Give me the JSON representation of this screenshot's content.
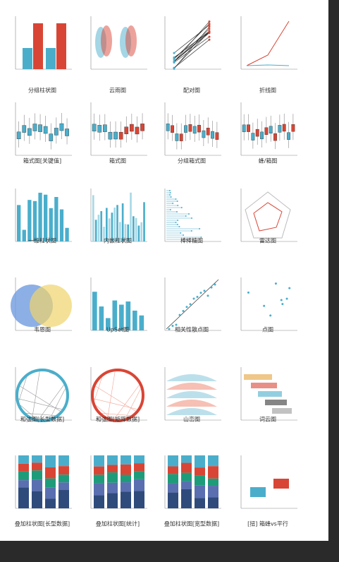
{
  "gallery": {
    "items": [
      "分组柱状图",
      "云雨图",
      "配对图",
      "折线图",
      "箱式图[关键值]",
      "箱式图",
      "分组箱式图",
      "蜂/箱图",
      "一维柱状图",
      "内嵌柱状图",
      "棒棒糖图",
      "雷达图",
      "韦恩图",
      "UpSet图",
      "相关性散点图",
      "点图",
      "和弦图[长型数据]",
      "和弦图[矩阵数据]",
      "山峦图",
      "词云图",
      "叠加柱状图[长型数据]",
      "叠加柱状图[统计]",
      "叠加柱状图[宽型数据]",
      "[扭] 箱蜂vs平行"
    ]
  }
}
